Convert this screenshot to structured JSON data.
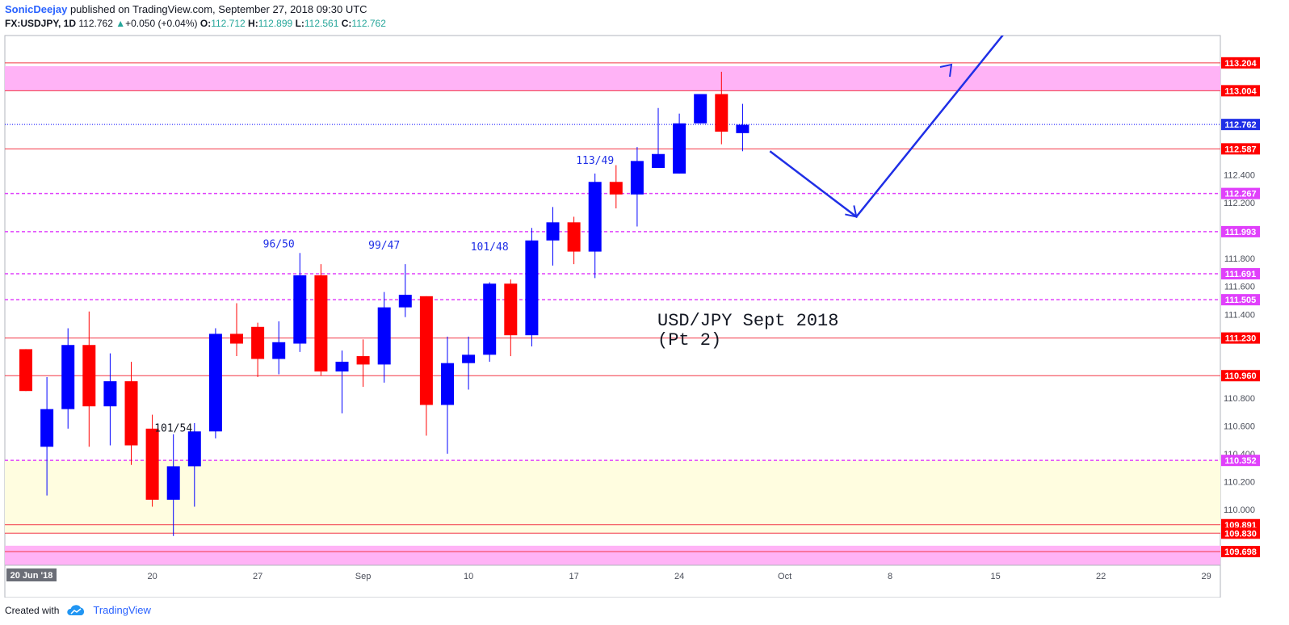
{
  "header": {
    "author": "SonicDeejay",
    "published_text": "published on TradingView.com, September 27, 2018 09:30 UTC",
    "symbol": "FX:USDJPY, 1D",
    "last": "112.762",
    "change_arrow": "▲",
    "change": "+0.050 (+0.04%)",
    "o_label": "O:",
    "o_value": "112.712",
    "h_label": "H:",
    "h_value": "112.899",
    "l_label": "L:",
    "l_value": "112.561",
    "c_label": "C:",
    "c_value": "112.762"
  },
  "footer": {
    "created_with": "Created with",
    "brand": "TradingView",
    "logo_icon": "tradingview-cloud-icon"
  },
  "colors": {
    "up": "#0000ff",
    "down": "#ff0000",
    "solid_line": "#f23645",
    "dashed_line": "#e040fb",
    "zone_pink": "#ffb3f6",
    "zone_yellow": "#fffde0",
    "arrow": "#1f2fe6",
    "annotation": "#1f2fe6"
  },
  "chart_data": {
    "type": "candlestick",
    "title": "USD/JPY Sept 2018\n(Pt 2)",
    "ylim": [
      109.6,
      113.4
    ],
    "price_ticks": [
      "110.000",
      "110.200",
      "110.400",
      "110.600",
      "110.800",
      "110.960",
      "111.400",
      "111.600",
      "111.800",
      "112.200",
      "112.400",
      "112.600",
      "113.200"
    ],
    "date_ticks": [
      {
        "label": "20 Jun '18",
        "index": 0,
        "highlight": true
      },
      {
        "label": "20",
        "index": 6
      },
      {
        "label": "27",
        "index": 11
      },
      {
        "label": "Sep",
        "index": 16
      },
      {
        "label": "10",
        "index": 21
      },
      {
        "label": "17",
        "index": 26
      },
      {
        "label": "24",
        "index": 31
      },
      {
        "label": "Oct",
        "index": 36
      },
      {
        "label": "8",
        "index": 41
      },
      {
        "label": "15",
        "index": 46
      },
      {
        "label": "22",
        "index": 51
      },
      {
        "label": "29",
        "index": 56
      }
    ],
    "candles": [
      {
        "o": 111.15,
        "h": 111.15,
        "l": 110.85,
        "c": 110.85
      },
      {
        "o": 110.45,
        "h": 110.95,
        "l": 110.1,
        "c": 110.72
      },
      {
        "o": 110.72,
        "h": 111.3,
        "l": 110.58,
        "c": 111.18
      },
      {
        "o": 111.18,
        "h": 111.42,
        "l": 110.45,
        "c": 110.74
      },
      {
        "o": 110.74,
        "h": 111.12,
        "l": 110.46,
        "c": 110.92
      },
      {
        "o": 110.92,
        "h": 111.06,
        "l": 110.32,
        "c": 110.46
      },
      {
        "o": 110.58,
        "h": 110.68,
        "l": 110.02,
        "c": 110.07
      },
      {
        "o": 110.07,
        "h": 110.54,
        "l": 109.81,
        "c": 110.31
      },
      {
        "o": 110.31,
        "h": 110.62,
        "l": 110.02,
        "c": 110.56
      },
      {
        "o": 110.56,
        "h": 111.3,
        "l": 110.51,
        "c": 111.26
      },
      {
        "o": 111.26,
        "h": 111.48,
        "l": 111.1,
        "c": 111.19
      },
      {
        "o": 111.31,
        "h": 111.34,
        "l": 110.95,
        "c": 111.08
      },
      {
        "o": 111.08,
        "h": 111.35,
        "l": 110.97,
        "c": 111.2
      },
      {
        "o": 111.19,
        "h": 111.84,
        "l": 111.13,
        "c": 111.68
      },
      {
        "o": 111.68,
        "h": 111.76,
        "l": 110.96,
        "c": 110.99
      },
      {
        "o": 110.99,
        "h": 111.14,
        "l": 110.69,
        "c": 111.06
      },
      {
        "o": 111.1,
        "h": 111.22,
        "l": 110.88,
        "c": 111.04
      },
      {
        "o": 111.04,
        "h": 111.56,
        "l": 110.91,
        "c": 111.45
      },
      {
        "o": 111.45,
        "h": 111.76,
        "l": 111.38,
        "c": 111.54
      },
      {
        "o": 111.53,
        "h": 111.53,
        "l": 110.53,
        "c": 110.75
      },
      {
        "o": 110.75,
        "h": 111.24,
        "l": 110.4,
        "c": 111.05
      },
      {
        "o": 111.05,
        "h": 111.24,
        "l": 110.86,
        "c": 111.11
      },
      {
        "o": 111.11,
        "h": 111.63,
        "l": 111.06,
        "c": 111.62
      },
      {
        "o": 111.62,
        "h": 111.65,
        "l": 111.1,
        "c": 111.25
      },
      {
        "o": 111.25,
        "h": 112.02,
        "l": 111.17,
        "c": 111.93
      },
      {
        "o": 111.93,
        "h": 112.17,
        "l": 111.75,
        "c": 112.06
      },
      {
        "o": 112.06,
        "h": 112.1,
        "l": 111.76,
        "c": 111.85
      },
      {
        "o": 111.85,
        "h": 112.41,
        "l": 111.66,
        "c": 112.35
      },
      {
        "o": 112.35,
        "h": 112.47,
        "l": 112.16,
        "c": 112.26
      },
      {
        "o": 112.26,
        "h": 112.6,
        "l": 112.03,
        "c": 112.5
      },
      {
        "o": 112.45,
        "h": 112.88,
        "l": 112.45,
        "c": 112.55
      },
      {
        "o": 112.41,
        "h": 112.84,
        "l": 112.41,
        "c": 112.77
      },
      {
        "o": 112.77,
        "h": 112.98,
        "l": 112.77,
        "c": 112.98
      },
      {
        "o": 112.98,
        "h": 113.14,
        "l": 112.62,
        "c": 112.71
      },
      {
        "o": 112.7,
        "h": 112.91,
        "l": 112.57,
        "c": 112.76
      }
    ],
    "levels": [
      {
        "price": "113.204",
        "value": 113.204,
        "style": "solid",
        "label_color": "#ff0000"
      },
      {
        "price": "113.004",
        "value": 113.004,
        "style": "solid",
        "label_color": "#ff0000"
      },
      {
        "price": "112.762",
        "value": 112.762,
        "style": "dotted",
        "label_color": "#1f2fe6"
      },
      {
        "price": "112.587",
        "value": 112.587,
        "style": "solid",
        "label_color": "#ff0000"
      },
      {
        "price": "112.267",
        "value": 112.267,
        "style": "dashed",
        "label_color": "#e040fb"
      },
      {
        "price": "111.993",
        "value": 111.993,
        "style": "dashed",
        "label_color": "#e040fb"
      },
      {
        "price": "111.691",
        "value": 111.691,
        "style": "dashed",
        "label_color": "#e040fb"
      },
      {
        "price": "111.505",
        "value": 111.505,
        "style": "dashed",
        "label_color": "#e040fb"
      },
      {
        "price": "111.230",
        "value": 111.23,
        "style": "solid",
        "label_color": "#ff0000"
      },
      {
        "price": "110.960",
        "value": 110.96,
        "style": "solid",
        "label_color": "#ff0000"
      },
      {
        "price": "110.352",
        "value": 110.352,
        "style": "dashed",
        "label_color": "#e040fb"
      },
      {
        "price": "109.891",
        "value": 109.891,
        "style": "solid",
        "label_color": "#ff0000"
      },
      {
        "price": "109.830",
        "value": 109.83,
        "style": "solid",
        "label_color": "#ff0000"
      },
      {
        "price": "109.698",
        "value": 109.698,
        "style": "solid",
        "label_color": "#ff0000"
      }
    ],
    "zones": [
      {
        "from": 113.004,
        "to": 113.18,
        "color": "#ffb3f6"
      },
      {
        "from": 109.83,
        "to": 110.352,
        "color": "#fffde0"
      },
      {
        "from": 109.6,
        "to": 109.74,
        "color": "#ffb3f6"
      }
    ],
    "annotations": [
      {
        "text": "101/54",
        "index": 7,
        "price": 110.56,
        "color": "#131722"
      },
      {
        "text": "96/50",
        "index": 12,
        "price": 111.88,
        "color": "#1f2fe6"
      },
      {
        "text": "99/47",
        "index": 17,
        "price": 111.87,
        "color": "#1f2fe6"
      },
      {
        "text": "101/48",
        "index": 22,
        "price": 111.86,
        "color": "#1f2fe6"
      },
      {
        "text": "113/49",
        "index": 27,
        "price": 112.48,
        "color": "#1f2fe6"
      }
    ],
    "projection": [
      {
        "index": 35.3,
        "price": 112.57
      },
      {
        "index": 39.4,
        "price": 112.1
      },
      {
        "index": 46.6,
        "price": 113.45
      }
    ]
  }
}
